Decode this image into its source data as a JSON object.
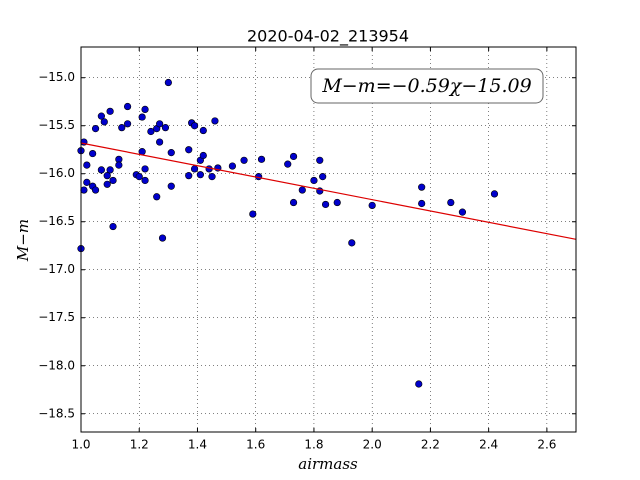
{
  "chart_data": {
    "type": "scatter",
    "title": "2020-04-02_213954",
    "x_label": "airmass",
    "y_label": "M−m",
    "annotation": "M−m=−0.59χ−15.09",
    "xlim": [
      1.0,
      2.7
    ],
    "ylim": [
      -18.69,
      -14.68
    ],
    "grid": true,
    "xticks": [
      {
        "value": 1,
        "label": "1.0"
      },
      {
        "value": 1.2,
        "label": "1.2"
      },
      {
        "value": 1.4,
        "label": "1.4"
      },
      {
        "value": 1.6,
        "label": "1.6"
      },
      {
        "value": 1.8,
        "label": "1.8"
      },
      {
        "value": 2,
        "label": "2.0"
      },
      {
        "value": 2.2,
        "label": "2.2"
      },
      {
        "value": 2.4,
        "label": "2.4"
      },
      {
        "value": 2.6,
        "label": "2.6"
      }
    ],
    "yticks": [
      {
        "value": -15,
        "label": "−15.0"
      },
      {
        "value": -15.5,
        "label": "−15.5"
      },
      {
        "value": -16,
        "label": "−16.0"
      },
      {
        "value": -16.5,
        "label": "−16.5"
      },
      {
        "value": -17,
        "label": "−17.0"
      },
      {
        "value": -17.5,
        "label": "−17.5"
      },
      {
        "value": -18,
        "label": "−18.0"
      },
      {
        "value": -18.5,
        "label": "−18.5"
      }
    ],
    "points": {
      "color": "#0000cc",
      "x": [
        1.0,
        1.0,
        1.01,
        1.01,
        1.02,
        1.02,
        1.04,
        1.04,
        1.05,
        1.05,
        1.07,
        1.07,
        1.08,
        1.09,
        1.09,
        1.1,
        1.1,
        1.11,
        1.11,
        1.13,
        1.13,
        1.14,
        1.16,
        1.16,
        1.19,
        1.2,
        1.21,
        1.21,
        1.22,
        1.22,
        1.22,
        1.24,
        1.26,
        1.26,
        1.27,
        1.27,
        1.28,
        1.29,
        1.3,
        1.31,
        1.31,
        1.37,
        1.37,
        1.38,
        1.39,
        1.39,
        1.41,
        1.41,
        1.42,
        1.42,
        1.44,
        1.45,
        1.46,
        1.47,
        1.52,
        1.56,
        1.59,
        1.61,
        1.62,
        1.71,
        1.73,
        1.73,
        1.76,
        1.8,
        1.82,
        1.82,
        1.83,
        1.84,
        1.88,
        1.93,
        2.0,
        2.16,
        2.17,
        2.17,
        2.27,
        2.31,
        2.42
      ],
      "y": [
        -15.76,
        -16.78,
        -16.17,
        -15.67,
        -16.09,
        -15.91,
        -15.79,
        -16.13,
        -15.53,
        -16.17,
        -15.4,
        -15.96,
        -15.46,
        -16.02,
        -16.11,
        -15.96,
        -15.35,
        -16.07,
        -16.55,
        -15.85,
        -15.91,
        -15.52,
        -15.3,
        -15.48,
        -16.01,
        -16.03,
        -15.41,
        -15.77,
        -16.07,
        -15.33,
        -15.95,
        -15.56,
        -15.53,
        -16.24,
        -15.67,
        -15.48,
        -16.67,
        -15.52,
        -15.05,
        -15.78,
        -16.13,
        -15.75,
        -16.02,
        -15.47,
        -15.5,
        -15.95,
        -16.01,
        -15.86,
        -15.55,
        -15.81,
        -15.95,
        -16.03,
        -15.45,
        -15.94,
        -15.92,
        -15.86,
        -16.42,
        -16.03,
        -15.85,
        -15.9,
        -16.3,
        -15.82,
        -16.17,
        -16.07,
        -15.86,
        -16.18,
        -16.03,
        -16.32,
        -16.3,
        -16.72,
        -16.33,
        -18.19,
        -16.14,
        -16.31,
        -16.3,
        -16.4,
        -16.21
      ]
    },
    "fit": {
      "color": "#dd0000",
      "x": [
        1.0,
        2.7
      ],
      "y": [
        -15.68,
        -16.683
      ]
    }
  }
}
